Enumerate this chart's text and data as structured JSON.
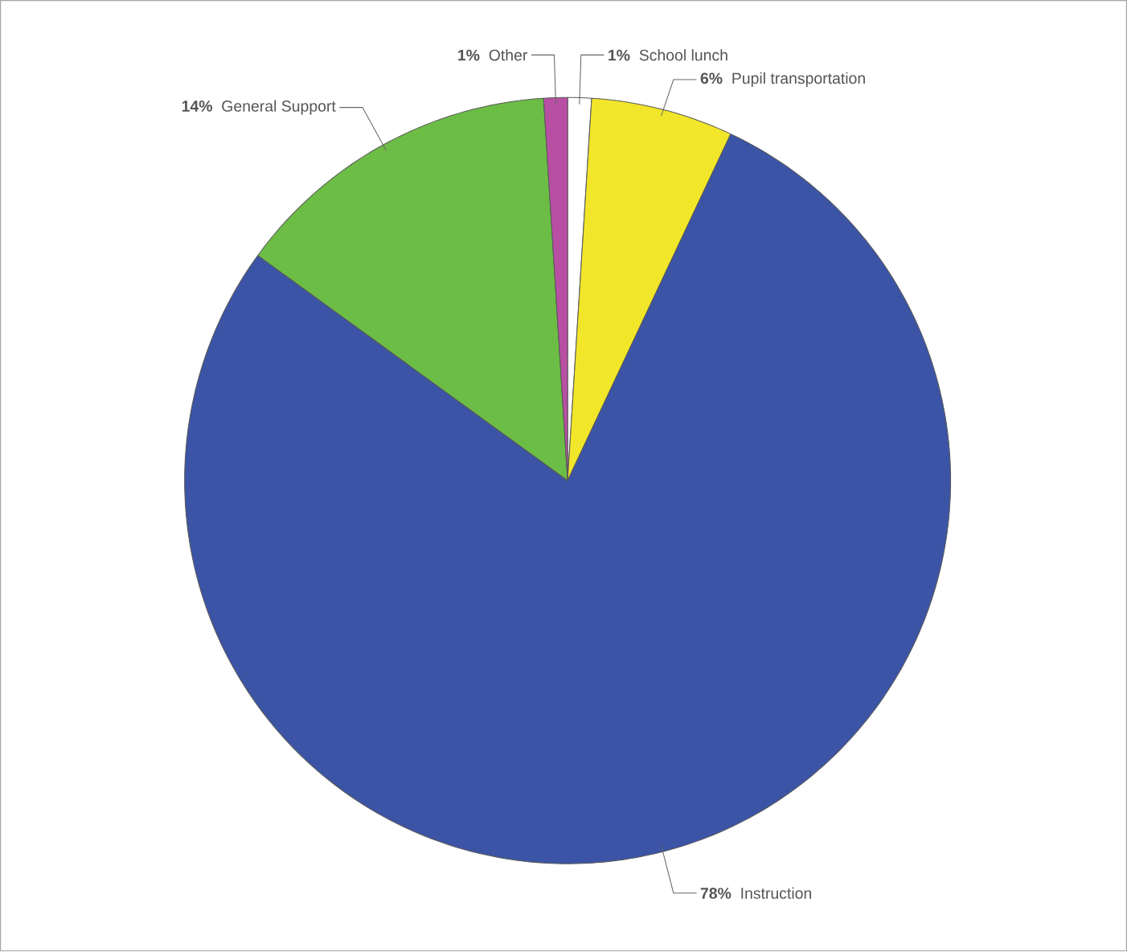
{
  "chart_data": {
    "type": "pie",
    "categories": [
      "School lunch",
      "Pupil transportation",
      "Instruction",
      "General Support",
      "Other"
    ],
    "values": [
      1,
      6,
      78,
      14,
      1
    ],
    "value_labels": [
      "1%",
      "6%",
      "78%",
      "14%",
      "1%"
    ],
    "colors": [
      "#ffffff",
      "#f2e62a",
      "#3b54a5",
      "#6cbd45",
      "#b84fa3"
    ]
  }
}
